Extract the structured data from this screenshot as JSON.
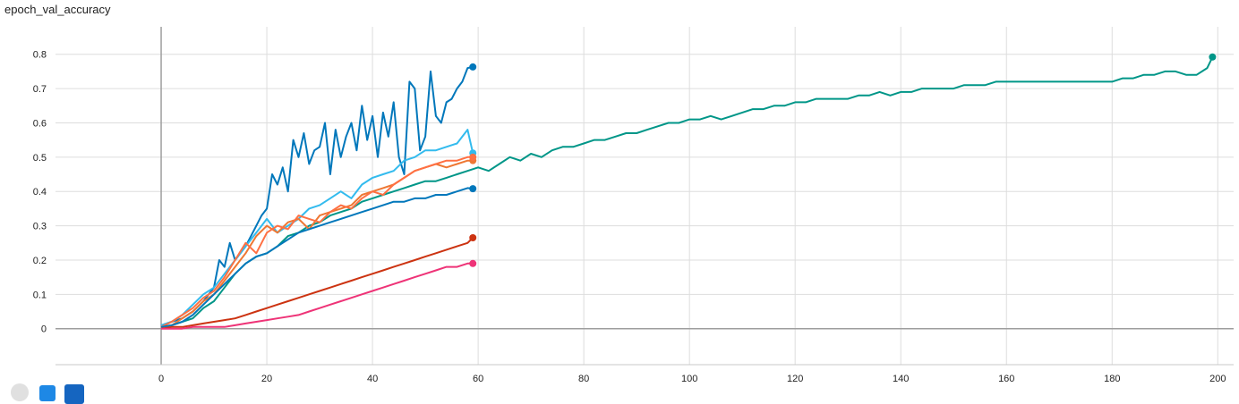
{
  "chart_data": {
    "type": "line",
    "title": "epoch_val_accuracy",
    "xlabel": "",
    "ylabel": "",
    "xlim": [
      -20,
      203
    ],
    "ylim": [
      -0.105,
      0.88
    ],
    "x_ticks": [
      0,
      20,
      40,
      60,
      80,
      100,
      120,
      140,
      160,
      180,
      200
    ],
    "y_ticks": [
      0,
      0.1,
      0.2,
      0.3,
      0.4,
      0.5,
      0.6,
      0.7,
      0.8
    ],
    "x_tick_labels": [
      "0",
      "20",
      "40",
      "60",
      "80",
      "100",
      "120",
      "140",
      "160",
      "180",
      "200"
    ],
    "y_tick_labels": [
      "0",
      "0.1",
      "0.2",
      "0.3",
      "0.4",
      "0.5",
      "0.6",
      "0.7",
      "0.8"
    ],
    "grid": true,
    "series": [
      {
        "color": "#009688",
        "x": [
          0,
          2,
          4,
          6,
          8,
          10,
          12,
          14,
          16,
          18,
          20,
          22,
          24,
          26,
          28,
          30,
          32,
          34,
          36,
          38,
          40,
          42,
          44,
          46,
          48,
          50,
          52,
          54,
          56,
          58,
          60,
          62,
          64,
          66,
          68,
          70,
          72,
          74,
          76,
          78,
          80,
          82,
          84,
          86,
          88,
          90,
          92,
          94,
          96,
          98,
          100,
          102,
          104,
          106,
          108,
          110,
          112,
          114,
          116,
          118,
          120,
          122,
          124,
          126,
          128,
          130,
          132,
          134,
          136,
          138,
          140,
          142,
          144,
          146,
          148,
          150,
          152,
          154,
          156,
          158,
          160,
          162,
          164,
          166,
          168,
          170,
          172,
          174,
          176,
          178,
          180,
          182,
          184,
          186,
          188,
          190,
          192,
          194,
          196,
          198,
          199
        ],
        "y": [
          0.005,
          0.01,
          0.02,
          0.03,
          0.06,
          0.08,
          0.12,
          0.16,
          0.19,
          0.21,
          0.22,
          0.24,
          0.27,
          0.28,
          0.3,
          0.31,
          0.33,
          0.34,
          0.35,
          0.37,
          0.38,
          0.39,
          0.4,
          0.41,
          0.42,
          0.43,
          0.43,
          0.44,
          0.45,
          0.46,
          0.47,
          0.46,
          0.48,
          0.5,
          0.49,
          0.51,
          0.5,
          0.52,
          0.53,
          0.53,
          0.54,
          0.55,
          0.55,
          0.56,
          0.57,
          0.57,
          0.58,
          0.59,
          0.6,
          0.6,
          0.61,
          0.61,
          0.62,
          0.61,
          0.62,
          0.63,
          0.64,
          0.64,
          0.65,
          0.65,
          0.66,
          0.66,
          0.67,
          0.67,
          0.67,
          0.67,
          0.68,
          0.68,
          0.69,
          0.68,
          0.69,
          0.69,
          0.7,
          0.7,
          0.7,
          0.7,
          0.71,
          0.71,
          0.71,
          0.72,
          0.72,
          0.72,
          0.72,
          0.72,
          0.72,
          0.72,
          0.72,
          0.72,
          0.72,
          0.72,
          0.72,
          0.73,
          0.73,
          0.74,
          0.74,
          0.75,
          0.75,
          0.74,
          0.74,
          0.76,
          0.792
        ]
      },
      {
        "color": "#0077bb",
        "x": [
          0,
          2,
          4,
          6,
          8,
          10,
          11,
          12,
          13,
          14,
          16,
          18,
          19,
          20,
          21,
          22,
          23,
          24,
          25,
          26,
          27,
          28,
          29,
          30,
          31,
          32,
          33,
          34,
          35,
          36,
          37,
          38,
          39,
          40,
          41,
          42,
          43,
          44,
          45,
          46,
          47,
          48,
          49,
          50,
          51,
          52,
          53,
          54,
          55,
          56,
          57,
          58,
          59
        ],
        "y": [
          0.01,
          0.02,
          0.03,
          0.05,
          0.08,
          0.12,
          0.2,
          0.18,
          0.25,
          0.2,
          0.24,
          0.3,
          0.33,
          0.35,
          0.45,
          0.42,
          0.47,
          0.4,
          0.55,
          0.5,
          0.57,
          0.48,
          0.52,
          0.53,
          0.6,
          0.45,
          0.58,
          0.5,
          0.56,
          0.6,
          0.52,
          0.65,
          0.55,
          0.62,
          0.5,
          0.63,
          0.56,
          0.66,
          0.5,
          0.45,
          0.72,
          0.7,
          0.52,
          0.56,
          0.75,
          0.62,
          0.6,
          0.66,
          0.67,
          0.7,
          0.72,
          0.76,
          0.763
        ]
      },
      {
        "color": "#33bbee",
        "x": [
          0,
          2,
          4,
          6,
          8,
          10,
          12,
          14,
          16,
          18,
          20,
          22,
          24,
          26,
          28,
          30,
          32,
          34,
          36,
          38,
          40,
          42,
          44,
          46,
          48,
          50,
          52,
          54,
          56,
          58,
          59
        ],
        "y": [
          0.01,
          0.02,
          0.04,
          0.07,
          0.1,
          0.12,
          0.16,
          0.2,
          0.24,
          0.28,
          0.32,
          0.28,
          0.3,
          0.32,
          0.35,
          0.36,
          0.38,
          0.4,
          0.38,
          0.42,
          0.44,
          0.45,
          0.46,
          0.49,
          0.5,
          0.52,
          0.52,
          0.53,
          0.54,
          0.58,
          0.512
        ]
      },
      {
        "color": "#ee7733",
        "x": [
          0,
          2,
          4,
          6,
          8,
          10,
          12,
          14,
          16,
          18,
          20,
          22,
          24,
          26,
          28,
          30,
          32,
          34,
          36,
          38,
          40,
          42,
          44,
          46,
          48,
          50,
          52,
          54,
          56,
          58,
          59
        ],
        "y": [
          0.005,
          0.01,
          0.03,
          0.05,
          0.08,
          0.1,
          0.14,
          0.18,
          0.22,
          0.27,
          0.3,
          0.28,
          0.31,
          0.32,
          0.29,
          0.33,
          0.34,
          0.35,
          0.36,
          0.39,
          0.4,
          0.41,
          0.42,
          0.44,
          0.46,
          0.47,
          0.48,
          0.47,
          0.48,
          0.49,
          0.49
        ]
      },
      {
        "color": "#ff7043",
        "x": [
          0,
          2,
          4,
          6,
          8,
          10,
          12,
          14,
          16,
          18,
          20,
          22,
          24,
          26,
          28,
          30,
          32,
          34,
          36,
          38,
          40,
          42,
          44,
          46,
          48,
          50,
          52,
          54,
          56,
          58,
          59
        ],
        "y": [
          0.005,
          0.02,
          0.04,
          0.06,
          0.09,
          0.11,
          0.15,
          0.2,
          0.25,
          0.22,
          0.28,
          0.3,
          0.29,
          0.33,
          0.32,
          0.31,
          0.34,
          0.36,
          0.35,
          0.38,
          0.4,
          0.39,
          0.42,
          0.44,
          0.46,
          0.47,
          0.48,
          0.49,
          0.49,
          0.5,
          0.5
        ]
      },
      {
        "color": "#0077bb",
        "x": [
          0,
          2,
          4,
          6,
          8,
          10,
          12,
          14,
          16,
          18,
          20,
          22,
          24,
          26,
          28,
          30,
          32,
          34,
          36,
          38,
          40,
          42,
          44,
          46,
          48,
          50,
          52,
          54,
          56,
          58,
          59
        ],
        "y": [
          0.005,
          0.01,
          0.02,
          0.04,
          0.07,
          0.1,
          0.13,
          0.16,
          0.19,
          0.21,
          0.22,
          0.24,
          0.26,
          0.28,
          0.29,
          0.3,
          0.31,
          0.32,
          0.33,
          0.34,
          0.35,
          0.36,
          0.37,
          0.37,
          0.38,
          0.38,
          0.39,
          0.39,
          0.4,
          0.41,
          0.408
        ]
      },
      {
        "color": "#cc3311",
        "x": [
          0,
          2,
          4,
          6,
          8,
          10,
          12,
          14,
          16,
          18,
          20,
          22,
          24,
          26,
          28,
          30,
          32,
          34,
          36,
          38,
          40,
          42,
          44,
          46,
          48,
          50,
          52,
          54,
          56,
          58,
          59
        ],
        "y": [
          0,
          0.005,
          0.005,
          0.01,
          0.015,
          0.02,
          0.025,
          0.03,
          0.04,
          0.05,
          0.06,
          0.07,
          0.08,
          0.09,
          0.1,
          0.11,
          0.12,
          0.13,
          0.14,
          0.15,
          0.16,
          0.17,
          0.18,
          0.19,
          0.2,
          0.21,
          0.22,
          0.23,
          0.24,
          0.25,
          0.265
        ]
      },
      {
        "color": "#ee3377",
        "x": [
          0,
          2,
          4,
          6,
          8,
          10,
          12,
          14,
          16,
          18,
          20,
          22,
          24,
          26,
          28,
          30,
          32,
          34,
          36,
          38,
          40,
          42,
          44,
          46,
          48,
          50,
          52,
          54,
          56,
          58,
          59
        ],
        "y": [
          0,
          0,
          0,
          0.005,
          0.005,
          0.005,
          0.005,
          0.01,
          0.015,
          0.02,
          0.025,
          0.03,
          0.035,
          0.04,
          0.05,
          0.06,
          0.07,
          0.08,
          0.09,
          0.1,
          0.11,
          0.12,
          0.13,
          0.14,
          0.15,
          0.16,
          0.17,
          0.18,
          0.18,
          0.19,
          0.19
        ]
      }
    ]
  }
}
